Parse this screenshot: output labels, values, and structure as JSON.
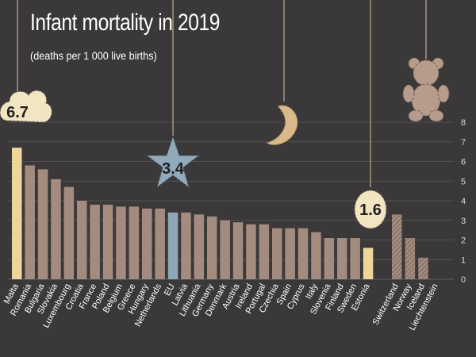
{
  "title": "Infant mortality in 2019",
  "subtitle": "(deaths per 1 000 live births)",
  "colors": {
    "background": "#3a3839",
    "bar": "#a48b7f",
    "highlight_malta": "#f0d59b",
    "highlight_estonia": "#f0d59b",
    "highlight_eu": "#8ea7b8",
    "efta_bar": "#a48b7f",
    "grid": "#5a5758",
    "badge_fill": "#f2e5c2",
    "star_fill": "#92a9b9",
    "moon_fill": "#d9b98a",
    "bear_fill": "#b89c8b"
  },
  "badges": {
    "malta": "6.7",
    "eu": "3.4",
    "estonia": "1.6"
  },
  "chart_data": {
    "type": "bar",
    "title": "Infant mortality in 2019",
    "subtitle": "(deaths per 1 000 live births)",
    "xlabel": "",
    "ylabel": "",
    "ylim": [
      0,
      8
    ],
    "yticks": [
      0,
      1,
      2,
      3,
      4,
      5,
      6,
      7,
      8
    ],
    "grid": true,
    "categories": [
      "Malta",
      "Romania",
      "Bulgaria",
      "Slovakia",
      "Luxembourg",
      "Croatia",
      "France",
      "Poland",
      "Belgium",
      "Greece",
      "Hungary",
      "Netherlands",
      "EU",
      "Latvia",
      "Lithuania",
      "Germany",
      "Denmark",
      "Austria",
      "Ireland",
      "Portugal",
      "Czechia",
      "Spain",
      "Cyprus",
      "Italy",
      "Slovenia",
      "Finland",
      "Sweden",
      "Estonia",
      "Switzerland",
      "Norway",
      "Iceland",
      "Liechtenstein"
    ],
    "values": [
      6.7,
      5.8,
      5.6,
      5.1,
      4.7,
      4.0,
      3.8,
      3.8,
      3.7,
      3.7,
      3.6,
      3.6,
      3.4,
      3.4,
      3.3,
      3.2,
      3.0,
      2.9,
      2.8,
      2.8,
      2.6,
      2.6,
      2.6,
      2.4,
      2.1,
      2.1,
      2.1,
      1.6,
      3.3,
      2.1,
      1.1,
      0.0
    ],
    "label_colors": {
      "Malta": "#f0d59b",
      "EU": "#8ea7b8",
      "Estonia": "#f0d59b"
    }
  }
}
